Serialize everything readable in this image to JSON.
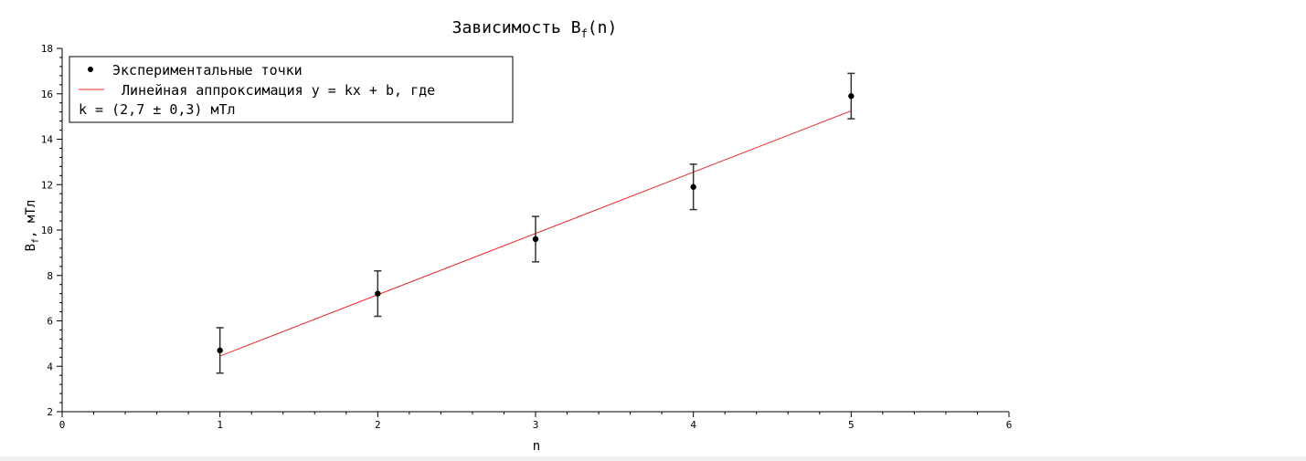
{
  "colors": {
    "background": "#ffffff",
    "axis": "#000000",
    "points": "#000000",
    "error_bars": "#333333",
    "fit_line": "#e8272a"
  },
  "chart_data": {
    "type": "scatter",
    "title_main": "Зависимость B",
    "title_sub": "f",
    "title_tail": "(n)",
    "xlabel": "n",
    "ylabel_main": "B",
    "ylabel_sub": "f",
    "ylabel_tail": ", мТл",
    "xlim": [
      0,
      6
    ],
    "ylim": [
      2,
      18
    ],
    "x_ticks": [
      0,
      1,
      2,
      3,
      4,
      5,
      6
    ],
    "y_ticks": [
      2,
      4,
      6,
      8,
      10,
      12,
      14,
      16,
      18
    ],
    "x_minor_step": 0.2,
    "y_minor_step": 0.4,
    "grid": false,
    "legend_position": "top-left",
    "series": [
      {
        "name": "Экспериментальные точки",
        "kind": "points_with_error_bars",
        "x": [
          1,
          2,
          3,
          4,
          5
        ],
        "y": [
          4.7,
          7.2,
          9.6,
          11.9,
          15.9
        ],
        "yerr": [
          1.0,
          1.0,
          1.0,
          1.0,
          1.0
        ]
      },
      {
        "name": "Линейная аппроксимация y = kx + b, где",
        "kind": "line",
        "x": [
          1,
          5
        ],
        "y": [
          4.45,
          15.25
        ]
      }
    ],
    "legend": {
      "line1": "Экспериментальные точки",
      "line2": "Линейная аппроксимация y = kx + b, где",
      "line3": "k = (2,7 ± 0,3) мТл"
    }
  }
}
